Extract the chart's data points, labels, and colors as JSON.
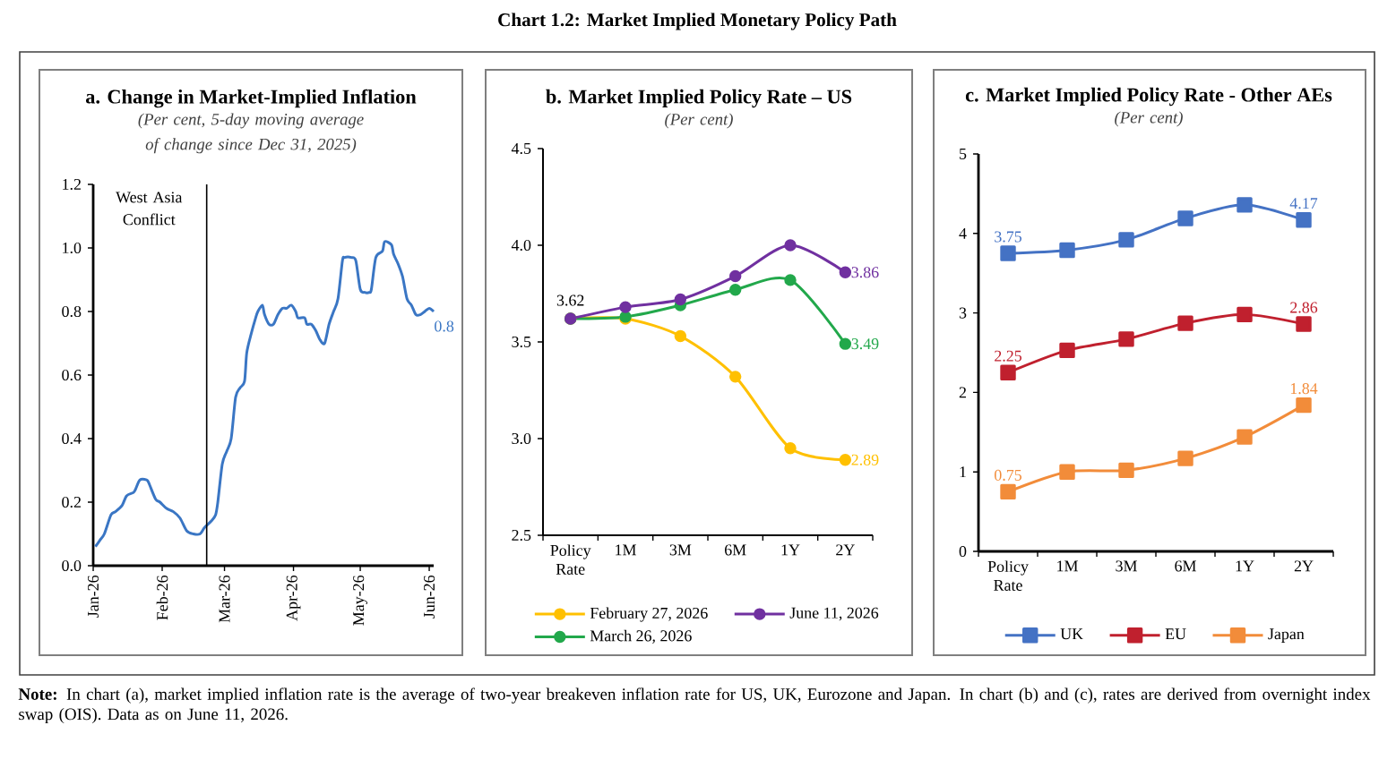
{
  "chart_data": [
    {
      "type": "other",
      "title": "Chart 1.2: Market Implied Monetary Policy Path",
      "annotations": [
        "**Note:** In chart (a), market implied inflation rate is the average of two-year breakeven inflation rate for US, UK, Eurozone and Japan. In chart (b) and (c), rates are derived from overnight index swap (OIS). Data as on June 11, 2026."
      ]
    },
    {
      "type": "line",
      "title": "a. Change in Market-Implied Inflation",
      "subtitle": "(Per cent, 5-day moving average of change since Dec 31, 2025)",
      "color": "#3a76c4",
      "x": [
        "2026-01-02",
        "2026-01-04",
        "2026-01-06",
        "2026-01-09",
        "2026-01-11",
        "2026-01-14",
        "2026-01-16",
        "2026-01-19",
        "2026-01-20",
        "2026-01-22",
        "2026-01-25",
        "2026-01-26",
        "2026-01-29",
        "2026-01-31",
        "2026-02-03",
        "2026-02-06",
        "2026-02-09",
        "2026-02-12",
        "2026-02-15",
        "2026-02-18",
        "2026-02-20",
        "2026-02-23",
        "2026-02-25",
        "2026-02-26",
        "2026-02-28",
        "2026-03-02",
        "2026-03-04",
        "2026-03-06",
        "2026-03-08",
        "2026-03-10",
        "2026-03-11",
        "2026-03-13",
        "2026-03-15",
        "2026-03-16",
        "2026-03-18",
        "2026-03-19",
        "2026-03-21",
        "2026-03-23",
        "2026-03-25",
        "2026-03-27",
        "2026-03-29",
        "2026-03-31",
        "2026-04-02",
        "2026-04-03",
        "2026-04-06",
        "2026-04-07",
        "2026-04-09",
        "2026-04-11",
        "2026-04-13",
        "2026-04-15",
        "2026-04-17",
        "2026-04-19",
        "2026-04-21",
        "2026-04-23",
        "2026-04-24",
        "2026-04-27",
        "2026-04-29",
        "2026-05-01",
        "2026-05-03",
        "2026-05-05",
        "2026-05-06",
        "2026-05-08",
        "2026-05-11",
        "2026-05-12",
        "2026-05-15",
        "2026-05-16",
        "2026-05-18",
        "2026-05-20",
        "2026-05-22",
        "2026-05-24",
        "2026-05-26",
        "2026-05-28",
        "2026-05-30",
        "2026-06-01",
        "2026-06-03"
      ],
      "values": [
        0.06,
        0.08,
        0.1,
        0.16,
        0.17,
        0.19,
        0.22,
        0.23,
        0.24,
        0.27,
        0.27,
        0.26,
        0.21,
        0.2,
        0.18,
        0.17,
        0.15,
        0.11,
        0.1,
        0.1,
        0.12,
        0.14,
        0.16,
        0.2,
        0.32,
        0.36,
        0.4,
        0.53,
        0.56,
        0.58,
        0.67,
        0.73,
        0.78,
        0.8,
        0.82,
        0.79,
        0.76,
        0.76,
        0.79,
        0.81,
        0.81,
        0.82,
        0.8,
        0.78,
        0.78,
        0.76,
        0.76,
        0.74,
        0.71,
        0.7,
        0.76,
        0.8,
        0.84,
        0.96,
        0.97,
        0.97,
        0.96,
        0.87,
        0.86,
        0.86,
        0.87,
        0.97,
        0.99,
        1.02,
        1.01,
        0.98,
        0.95,
        0.91,
        0.84,
        0.82,
        0.79,
        0.79,
        0.8,
        0.81,
        0.8
      ],
      "value_labels": [
        null,
        null,
        null,
        null,
        null,
        null,
        null,
        null,
        null,
        null,
        null,
        null,
        null,
        null,
        null,
        null,
        null,
        null,
        null,
        null,
        null,
        null,
        null,
        null,
        null,
        null,
        null,
        null,
        null,
        null,
        null,
        null,
        null,
        null,
        null,
        null,
        null,
        null,
        null,
        null,
        null,
        null,
        null,
        null,
        null,
        null,
        null,
        null,
        null,
        null,
        null,
        null,
        null,
        null,
        null,
        null,
        null,
        null,
        null,
        null,
        null,
        null,
        null,
        null,
        null,
        null,
        null,
        null,
        null,
        null,
        null,
        null,
        null,
        null,
        "0.8"
      ],
      "xlim": [
        "2026-01-01",
        "2026-06-03"
      ],
      "xticks": [
        {
          "value": "2026-01-01",
          "label": "Jan-26"
        },
        {
          "value": "2026-02-01",
          "label": "Feb-26"
        },
        {
          "value": "2026-03-01",
          "label": "Mar-26"
        },
        {
          "value": "2026-04-01",
          "label": "Apr-26"
        },
        {
          "value": "2026-05-01",
          "label": "May-26"
        },
        {
          "value": "2026-06-01",
          "label": "Jun-26"
        }
      ],
      "ylim": [
        0,
        1.2
      ],
      "yticks": [
        {
          "value": 0,
          "label": "0.0"
        },
        0.2,
        0.4,
        0.6,
        0.8,
        {
          "value": 1,
          "label": "1.0"
        },
        1.2
      ],
      "ref_lines": [
        {
          "axis": "x",
          "value": "2026-02-21",
          "label": "West Asia Conflict",
          "color": "#000000"
        }
      ]
    },
    {
      "type": "line",
      "title": "b. Market Implied Policy Rate – US",
      "subtitle": "(Per cent)",
      "categories": [
        "Policy Rate",
        "1M",
        "3M",
        "6M",
        "1Y",
        "2Y"
      ],
      "series": [
        {
          "name": "February 27, 2026",
          "color": "#ffc000",
          "values": [
            3.62,
            3.62,
            3.53,
            3.32,
            2.95,
            2.89
          ],
          "value_labels": [
            null,
            null,
            null,
            null,
            null,
            "2.89"
          ]
        },
        {
          "name": "March 26, 2026",
          "color": "#22a84b",
          "values": [
            3.62,
            3.63,
            3.69,
            3.77,
            3.82,
            3.49
          ],
          "value_labels": [
            null,
            null,
            null,
            null,
            null,
            "3.49"
          ]
        },
        {
          "name": "June 11, 2026",
          "color": "#7030a0",
          "values": [
            3.62,
            3.68,
            3.72,
            3.84,
            4.0,
            3.86
          ],
          "value_labels": [
            null,
            null,
            null,
            null,
            null,
            "3.86"
          ]
        }
      ],
      "ylim": [
        2.5,
        4.5
      ],
      "yticks": [
        2.5,
        {
          "value": 3,
          "label": "3.0"
        },
        3.5,
        {
          "value": 4,
          "label": "4.0"
        },
        4.5
      ],
      "marker": "circle",
      "legend": "bottom",
      "annotations": [
        {
          "text": "3.62",
          "x": "Policy Rate",
          "y": 3.62
        }
      ]
    },
    {
      "type": "line",
      "title": "c. Market Implied Policy Rate - Other AEs",
      "subtitle": "(Per cent)",
      "categories": [
        "Policy Rate",
        "1M",
        "3M",
        "6M",
        "1Y",
        "2Y"
      ],
      "series": [
        {
          "name": "UK",
          "color": "#4472c4",
          "values": [
            3.75,
            3.79,
            3.92,
            4.19,
            4.36,
            4.17
          ],
          "value_labels": [
            "3.75",
            null,
            null,
            null,
            null,
            "4.17"
          ]
        },
        {
          "name": "EU",
          "color": "#c0202e",
          "values": [
            2.25,
            2.53,
            2.67,
            2.87,
            2.98,
            2.86
          ],
          "value_labels": [
            "2.25",
            null,
            null,
            null,
            null,
            "2.86"
          ]
        },
        {
          "name": "Japan",
          "color": "#f28c3a",
          "values": [
            0.75,
            1.0,
            1.02,
            1.17,
            1.44,
            1.84
          ],
          "value_labels": [
            "0.75",
            null,
            null,
            null,
            null,
            "1.84"
          ]
        }
      ],
      "ylim": [
        0,
        5
      ],
      "yticks": [
        0,
        1,
        2,
        3,
        4,
        5
      ],
      "marker": "square",
      "legend": "bottom"
    }
  ]
}
